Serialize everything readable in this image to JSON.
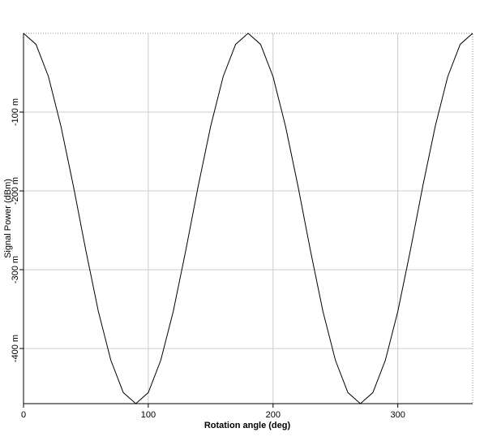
{
  "chart_data": {
    "type": "line",
    "x_label": "Rotation angle (deg)",
    "y_label": "Signal Power (dBm)",
    "x": [
      0,
      10,
      20,
      30,
      40,
      50,
      60,
      70,
      80,
      90,
      100,
      110,
      120,
      130,
      140,
      150,
      160,
      170,
      180,
      190,
      200,
      210,
      220,
      230,
      240,
      250,
      260,
      270,
      280,
      290,
      300,
      310,
      320,
      330,
      340,
      350,
      360
    ],
    "series": [
      {
        "color": "#000000",
        "values": [
          0,
          -0.014,
          -0.055,
          -0.118,
          -0.194,
          -0.276,
          -0.353,
          -0.415,
          -0.456,
          -0.47,
          -0.456,
          -0.415,
          -0.353,
          -0.276,
          -0.194,
          -0.118,
          -0.055,
          -0.014,
          0,
          -0.014,
          -0.055,
          -0.118,
          -0.194,
          -0.276,
          -0.353,
          -0.415,
          -0.456,
          -0.47,
          -0.456,
          -0.415,
          -0.353,
          -0.276,
          -0.194,
          -0.118,
          -0.055,
          -0.014,
          0
        ]
      }
    ],
    "xlim": [
      0,
      360
    ],
    "ylim": [
      -0.47,
      0
    ],
    "xticks": [
      0,
      100,
      200,
      300
    ],
    "yticks": [
      {
        "value": -0.4,
        "label": "-400 m"
      },
      {
        "value": -0.3,
        "label": "-300 m"
      },
      {
        "value": -0.2,
        "label": "-200 m"
      },
      {
        "value": -0.1,
        "label": "-100 m"
      }
    ],
    "grid": true
  }
}
